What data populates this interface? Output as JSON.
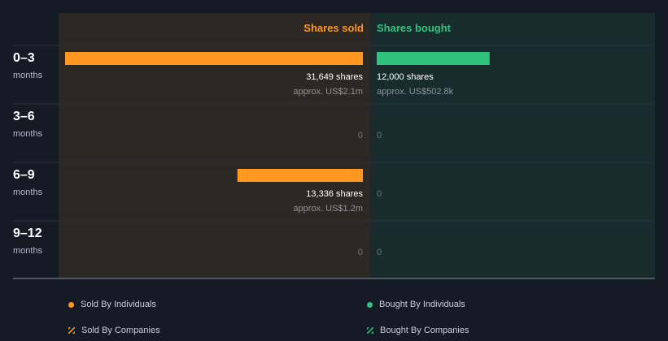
{
  "chart_data": {
    "type": "bar",
    "orientation": "horizontal-diverging",
    "headers": {
      "sold": "Shares sold",
      "bought": "Shares bought"
    },
    "rows": [
      {
        "period": "0–3",
        "unit": "months",
        "sold": {
          "shares": 31649,
          "label": "31,649 shares",
          "approx": "approx. US$2.1m"
        },
        "bought": {
          "shares": 12000,
          "label": "12,000 shares",
          "approx": "approx. US$502.8k"
        }
      },
      {
        "period": "3–6",
        "unit": "months",
        "sold": {
          "shares": 0,
          "label": "0",
          "approx": ""
        },
        "bought": {
          "shares": 0,
          "label": "0",
          "approx": ""
        }
      },
      {
        "period": "6–9",
        "unit": "months",
        "sold": {
          "shares": 13336,
          "label": "13,336 shares",
          "approx": "approx. US$1.2m"
        },
        "bought": {
          "shares": 0,
          "label": "0",
          "approx": ""
        }
      },
      {
        "period": "9–12",
        "unit": "months",
        "sold": {
          "shares": 0,
          "label": "0",
          "approx": ""
        },
        "bought": {
          "shares": 0,
          "label": "0",
          "approx": ""
        }
      }
    ],
    "max_shares": 31649
  },
  "legend": {
    "sold_individuals": "Sold By Individuals",
    "bought_individuals": "Bought By Individuals",
    "sold_companies": "Sold By Companies",
    "bought_companies": "Bought By Companies"
  },
  "colors": {
    "sold": "#ff9620",
    "bought": "#2ec27e",
    "sold_bg": "#2c2824",
    "bought_bg": "#192c2d",
    "header_band": "#1e2530"
  }
}
